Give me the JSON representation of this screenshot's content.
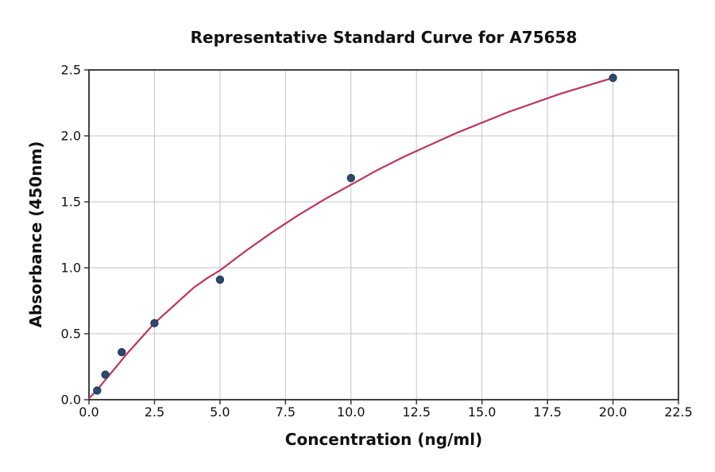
{
  "figure": {
    "background": "#ffffff"
  },
  "chart_data": {
    "type": "scatter",
    "title": "Representative Standard Curve for A75658",
    "xlabel": "Concentration (ng/ml)",
    "ylabel": "Absorbance (450nm)",
    "xlim": [
      0,
      22.5
    ],
    "ylim": [
      0,
      2.5
    ],
    "xticks": [
      0,
      2.5,
      5,
      7.5,
      10,
      12.5,
      15,
      17.5,
      20,
      22.5
    ],
    "xtick_labels": [
      "0.0",
      "2.5",
      "5.0",
      "7.5",
      "10.0",
      "12.5",
      "15.0",
      "17.5",
      "20.0",
      "22.5"
    ],
    "yticks": [
      0,
      0.5,
      1,
      1.5,
      2,
      2.5
    ],
    "ytick_labels": [
      "0.0",
      "0.5",
      "1.0",
      "1.5",
      "2.0",
      "2.5"
    ],
    "grid": true,
    "legend_position": "none",
    "points": {
      "name": "standard data points",
      "x": [
        0.313,
        0.625,
        1.25,
        2.5,
        5,
        10,
        20
      ],
      "y": [
        0.07,
        0.19,
        0.36,
        0.58,
        0.91,
        1.68,
        2.44
      ]
    },
    "curve": {
      "name": "fitted standard curve",
      "x": [
        0,
        0.25,
        0.5,
        0.75,
        1,
        1.25,
        1.5,
        2,
        2.5,
        3,
        3.5,
        4,
        4.5,
        5,
        6,
        7,
        8,
        9,
        10,
        11,
        12,
        13,
        14,
        15,
        16,
        17,
        18,
        19,
        20
      ],
      "y": [
        0.01,
        0.06,
        0.12,
        0.18,
        0.24,
        0.3,
        0.36,
        0.47,
        0.58,
        0.67,
        0.76,
        0.85,
        0.92,
        0.98,
        1.13,
        1.27,
        1.4,
        1.52,
        1.63,
        1.74,
        1.84,
        1.93,
        2.02,
        2.1,
        2.18,
        2.25,
        2.32,
        2.38,
        2.44
      ]
    },
    "colors": {
      "curve": "#BE345C",
      "marker": "#2C4A6B",
      "marker_edge": "#223C5A",
      "grid": "#c6c6c6",
      "spine": "#2e2e2e",
      "text": "#111111",
      "background": "#ffffff"
    }
  }
}
